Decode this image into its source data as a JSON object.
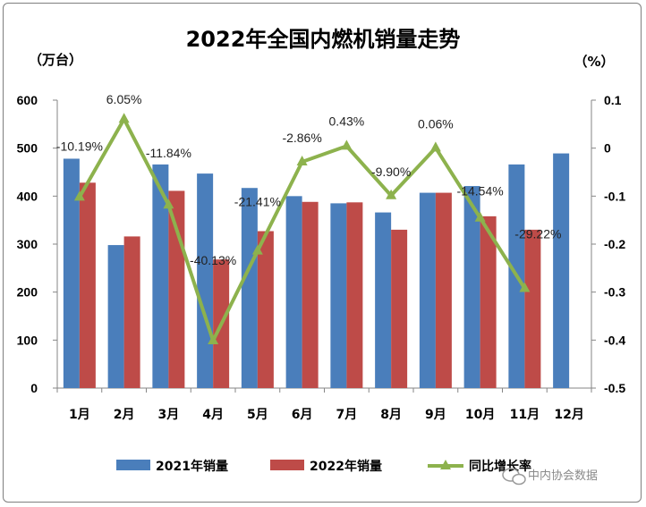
{
  "chart_data": {
    "type": "bar",
    "title": "2022年全国内燃机销量走势",
    "left_unit": "（万台）",
    "right_unit": "（%）",
    "categories": [
      "1月",
      "2月",
      "3月",
      "4月",
      "5月",
      "6月",
      "7月",
      "8月",
      "9月",
      "10月",
      "11月",
      "12月"
    ],
    "ylim": [
      0,
      600
    ],
    "y_ticks": [
      "0",
      "100",
      "200",
      "300",
      "400",
      "500",
      "600"
    ],
    "y2lim": [
      -0.5,
      0.1
    ],
    "y2_ticks": [
      "-0.5",
      "-0.4",
      "-0.3",
      "-0.2",
      "-0.1",
      "0",
      "0.1"
    ],
    "series": [
      {
        "name": "2021年销量",
        "kind": "bar",
        "color": "#4a7ebb",
        "values": [
          478,
          298,
          466,
          447,
          417,
          400,
          385,
          366,
          407,
          421,
          466,
          489
        ]
      },
      {
        "name": "2022年销量",
        "kind": "bar",
        "color": "#be4b48",
        "values": [
          428,
          316,
          411,
          268,
          327,
          388,
          387,
          330,
          407,
          358,
          330,
          null
        ]
      },
      {
        "name": "同比增长率",
        "kind": "line",
        "axis": "right",
        "color": "#8db24d",
        "values": [
          -0.1019,
          0.0605,
          -0.1184,
          -0.4013,
          -0.2141,
          -0.0286,
          0.0043,
          -0.099,
          0.0006,
          -0.1454,
          -0.2922,
          null
        ],
        "labels": [
          "-10.19%",
          "6.05%",
          "-11.84%",
          "-40.13%",
          "-21.41%",
          "-2.86%",
          "0.43%",
          "-9.90%",
          "0.06%",
          "-14.54%",
          "-29.22%",
          ""
        ]
      }
    ],
    "grid": false,
    "legend_position": "bottom"
  },
  "watermark": "中内协会数据"
}
